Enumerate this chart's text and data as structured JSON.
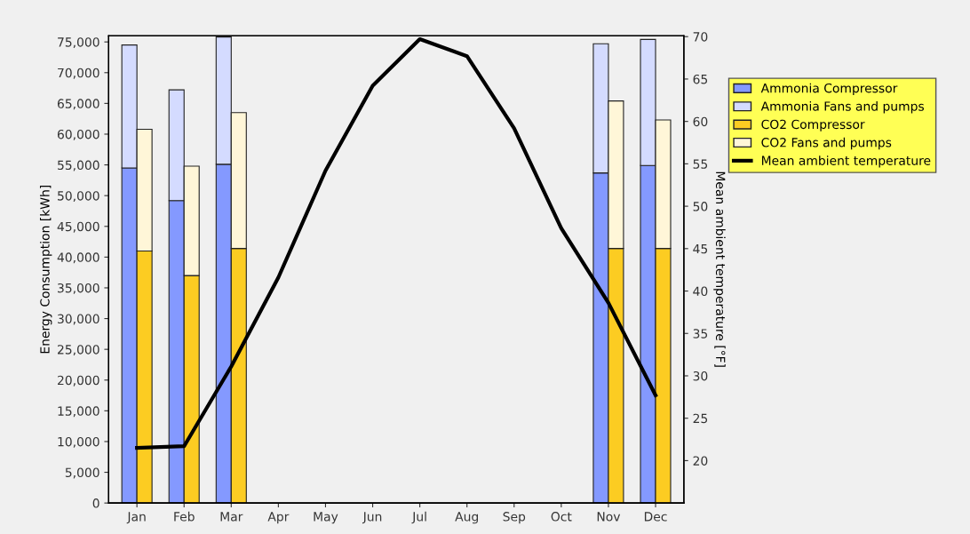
{
  "chart_data": [
    {
      "type": "bar",
      "stacked": true,
      "ylabel": "Energy Consumption [kWh]",
      "y2label": "Mean ambient temperature [°F]",
      "categories": [
        "Jan",
        "Feb",
        "Mar",
        "Apr",
        "May",
        "Jun",
        "Jul",
        "Aug",
        "Sep",
        "Oct",
        "Nov",
        "Dec"
      ],
      "series": [
        {
          "name": "Ammonia Compressor",
          "color": "#8499ff",
          "values": [
            54500,
            49200,
            55100,
            null,
            null,
            null,
            null,
            null,
            null,
            null,
            53700,
            54900
          ]
        },
        {
          "name": "Ammonia Fans and pumps",
          "color": "#d4dbff",
          "values": [
            20000,
            18000,
            20700,
            null,
            null,
            null,
            null,
            null,
            null,
            null,
            21000,
            20500
          ]
        },
        {
          "name": "Mean ambient temperature",
          "type": "line",
          "axis": "y2",
          "color": "#000000",
          "values": [
            21.5,
            21.7,
            31.1,
            41.6,
            54.2,
            64.2,
            69.7,
            67.7,
            59.2,
            47.4,
            38.6,
            27.7
          ]
        }
      ],
      "ylim": [
        0,
        76000
      ],
      "yticks": [
        0,
        {
          "value": 5000,
          "label": "5,000"
        },
        {
          "value": 10000,
          "label": "10,000"
        },
        {
          "value": 15000,
          "label": "15,000"
        },
        {
          "value": 20000,
          "label": "20,000"
        },
        {
          "value": 25000,
          "label": "25,000"
        },
        {
          "value": 30000,
          "label": "30,000"
        },
        {
          "value": 35000,
          "label": "35,000"
        },
        {
          "value": 40000,
          "label": "40,000"
        },
        {
          "value": 45000,
          "label": "45,000"
        },
        {
          "value": 50000,
          "label": "50,000"
        },
        {
          "value": 55000,
          "label": "55,000"
        },
        {
          "value": 60000,
          "label": "60,000"
        },
        {
          "value": 65000,
          "label": "65,000"
        },
        {
          "value": 70000,
          "label": "70,000"
        },
        {
          "value": 75000,
          "label": "75,000"
        }
      ],
      "y2lim": [
        15,
        70.1
      ],
      "y2ticks": [
        20,
        25,
        30,
        35,
        40,
        45,
        50,
        55,
        60,
        65,
        70
      ],
      "grid": false,
      "legend": "top right",
      "line_style": "solid",
      "marker": "none"
    },
    {
      "type": "bar",
      "stacked": true,
      "categories": [
        null,
        null,
        null,
        null,
        null,
        null,
        null,
        null,
        null,
        null,
        null,
        null
      ],
      "series": [
        {
          "name": "CO2 Compressor",
          "color": "#fccc22",
          "values": [
            41000,
            37000,
            41400,
            null,
            null,
            null,
            null,
            null,
            null,
            null,
            41400,
            41400
          ]
        },
        {
          "name": "CO2 Fans and pumps",
          "color": "#fff6d8",
          "values": [
            19800,
            17800,
            22100,
            null,
            null,
            null,
            null,
            null,
            null,
            null,
            24000,
            20900
          ]
        }
      ],
      "ylim": [
        0,
        76000
      ],
      "tick_labels": false,
      "grid": false,
      "legend": "top right"
    }
  ]
}
